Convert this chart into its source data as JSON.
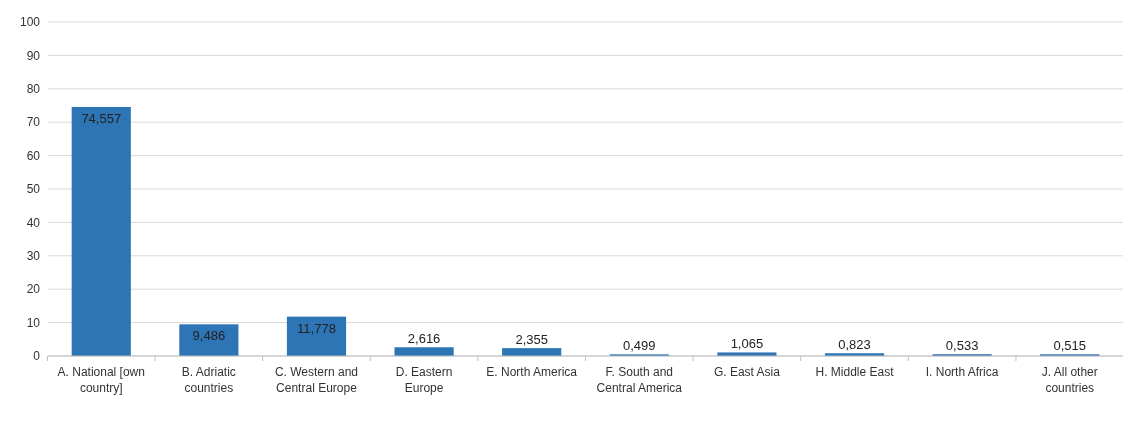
{
  "chart_data": {
    "type": "bar",
    "categories": [
      "A. National [own country]",
      "B.  Adriatic countries",
      "C.  Western and Central Europe",
      "D.  Eastern Europe",
      "E. North America",
      "F. South and Central America",
      "G. East Asia",
      "H. Middle East",
      "I. North Africa",
      "J. All other countries"
    ],
    "values": [
      74.557,
      9.486,
      11.778,
      2.616,
      2.355,
      0.499,
      1.065,
      0.823,
      0.533,
      0.515
    ],
    "value_labels": [
      "74,557",
      "9,486",
      "11,778",
      "2,616",
      "2,355",
      "0,499",
      "1,065",
      "0,823",
      "0,533",
      "0,515"
    ],
    "color": "#2e75b6",
    "ylim": [
      0,
      100
    ],
    "yticks": [
      0,
      10,
      20,
      30,
      40,
      50,
      60,
      70,
      80,
      90,
      100
    ],
    "grid": "y"
  }
}
